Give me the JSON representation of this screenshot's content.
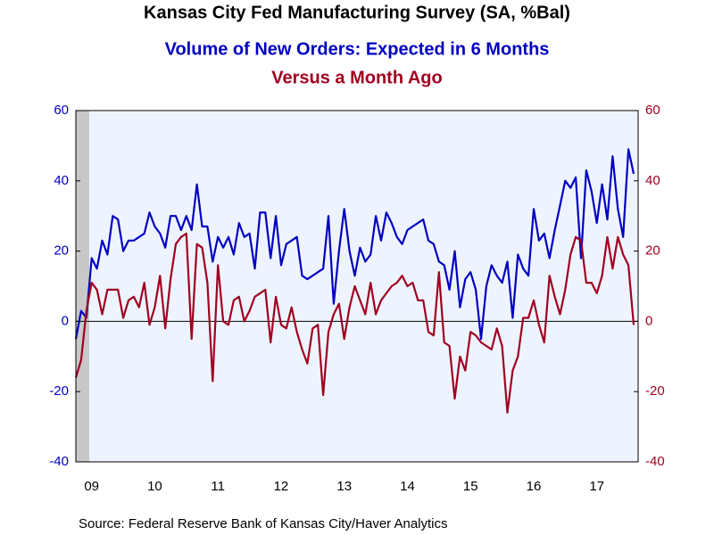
{
  "chart_data": {
    "type": "line",
    "title": "Kansas City Fed Manufacturing Survey (SA, %Bal)",
    "subtitle": "Volume of New Orders: Expected in 6 Months",
    "subtitle2": "Versus a Month Ago",
    "source": "Source:  Federal Reserve Bank of Kansas City/Haver Analytics",
    "categories": [
      null,
      null,
      null,
      "09",
      null,
      null,
      null,
      null,
      null,
      null,
      null,
      null,
      null,
      null,
      null,
      "10",
      null,
      null,
      null,
      null,
      null,
      null,
      null,
      null,
      null,
      null,
      null,
      "11",
      null,
      null,
      null,
      null,
      null,
      null,
      null,
      null,
      null,
      null,
      null,
      "12",
      null,
      null,
      null,
      null,
      null,
      null,
      null,
      null,
      null,
      null,
      null,
      "13",
      null,
      null,
      null,
      null,
      null,
      null,
      null,
      null,
      null,
      null,
      null,
      "14",
      null,
      null,
      null,
      null,
      null,
      null,
      null,
      null,
      null,
      null,
      null,
      "15",
      null,
      null,
      null,
      null,
      null,
      null,
      null,
      null,
      null,
      null,
      null,
      "16",
      null,
      null,
      null,
      null,
      null,
      null,
      null,
      null,
      null,
      null,
      null,
      "17",
      null,
      null,
      null,
      null,
      null,
      null,
      null
    ],
    "series": [
      {
        "name": "Volume of New Orders: Expected in 6 Months",
        "color": "#0000c0",
        "axis": "y",
        "values": [
          -5,
          3,
          1,
          18,
          15,
          23,
          19,
          30,
          29,
          20,
          23,
          23,
          24,
          25,
          31,
          27,
          25,
          21,
          30,
          30,
          26,
          30,
          26,
          39,
          27,
          27,
          17,
          24,
          21,
          24,
          19,
          28,
          24,
          25,
          15,
          31,
          31,
          18,
          30,
          16,
          22,
          23,
          24,
          13,
          12,
          13,
          14,
          15,
          30,
          5,
          20,
          32,
          20,
          13,
          21,
          17,
          19,
          30,
          23,
          31,
          28,
          24,
          22,
          26,
          27,
          28,
          29,
          23,
          22,
          17,
          16,
          9,
          20,
          4,
          12,
          14,
          9,
          -5,
          10,
          16,
          13,
          11,
          17,
          1,
          19,
          15,
          13,
          32,
          23,
          25,
          18,
          26,
          33,
          40,
          38,
          41,
          18,
          43,
          37,
          28,
          39,
          29,
          47,
          32,
          24,
          49,
          42
        ]
      },
      {
        "name": "Versus a Month Ago",
        "color": "#a00020",
        "axis": "y2",
        "values": [
          -16,
          -11,
          3,
          11,
          9,
          2,
          9,
          9,
          9,
          1,
          6,
          7,
          4,
          11,
          -1,
          4,
          13,
          -2,
          12,
          22,
          24,
          25,
          -5,
          22,
          21,
          11,
          -17,
          16,
          0,
          -1,
          6,
          7,
          0,
          3,
          7,
          8,
          9,
          -6,
          7,
          -1,
          -2,
          4,
          -3,
          -8,
          -12,
          -2,
          -1,
          -21,
          -3,
          2,
          5,
          -5,
          4,
          10,
          6,
          2,
          11,
          2,
          6,
          8,
          10,
          11,
          13,
          10,
          11,
          6,
          6,
          -3,
          -4,
          14,
          -6,
          -7,
          -22,
          -10,
          -14,
          -3,
          -4,
          -6,
          -7,
          -8,
          -2,
          -7,
          -26,
          -14,
          -10,
          1,
          1,
          6,
          -1,
          -6,
          13,
          7,
          2,
          9,
          19,
          24,
          23,
          11,
          11,
          8,
          13,
          24,
          15,
          24,
          19,
          16,
          -1
        ]
      }
    ],
    "ylim": [
      -40,
      60
    ],
    "yticks": [
      -40,
      -20,
      0,
      20,
      40,
      60
    ],
    "y2lim": [
      -40,
      60
    ],
    "y2ticks": [
      -40,
      -20,
      0,
      20,
      40,
      60
    ]
  }
}
